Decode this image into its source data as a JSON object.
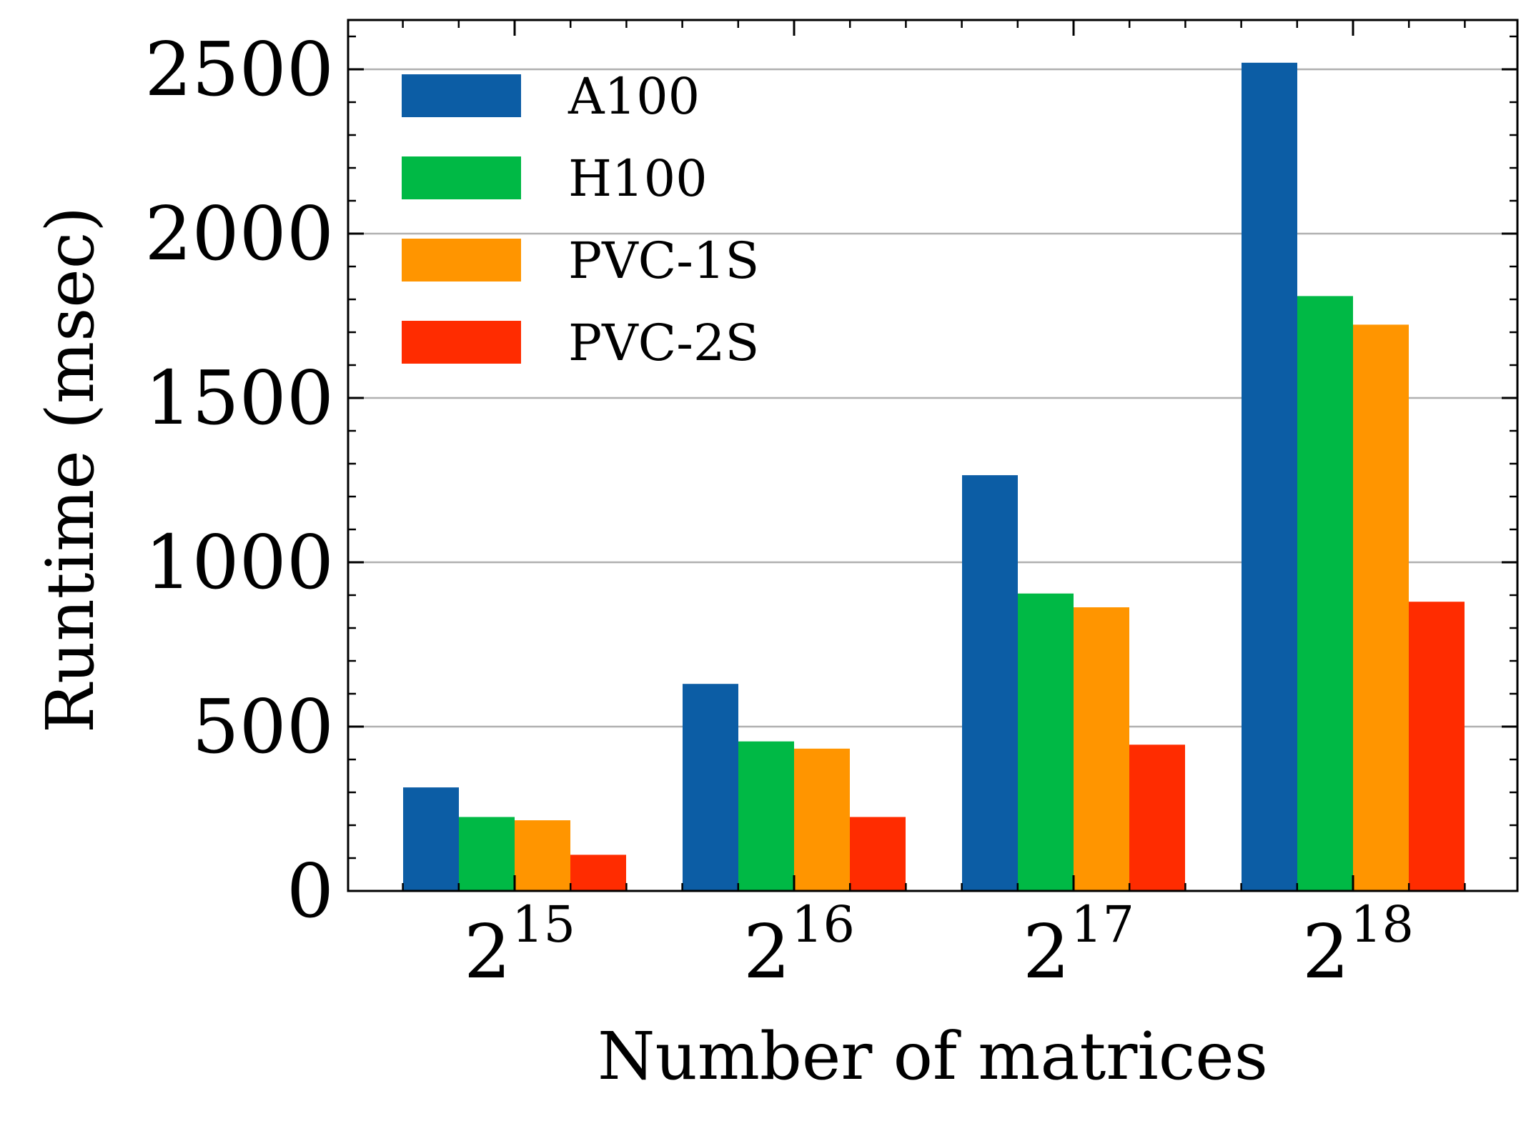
{
  "chart_data": {
    "type": "bar",
    "title": "",
    "xlabel": "Number of matrices",
    "ylabel": "Runtime (msec)",
    "categories": [
      {
        "base": "2",
        "exp": "15"
      },
      {
        "base": "2",
        "exp": "16"
      },
      {
        "base": "2",
        "exp": "17"
      },
      {
        "base": "2",
        "exp": "18"
      }
    ],
    "series": [
      {
        "name": "A100",
        "color": "#0C5DA5",
        "values": [
          315,
          630,
          1265,
          2520
        ]
      },
      {
        "name": "H100",
        "color": "#00B945",
        "values": [
          225,
          455,
          905,
          1810
        ]
      },
      {
        "name": "PVC-1S",
        "color": "#FF9500",
        "values": [
          215,
          433,
          863,
          1723
        ]
      },
      {
        "name": "PVC-2S",
        "color": "#FF2C00",
        "values": [
          110,
          225,
          445,
          880
        ]
      }
    ],
    "ylim": [
      0,
      2650
    ],
    "yticks": [
      0,
      500,
      1000,
      1500,
      2000,
      2500
    ],
    "yticks_minor_step": 100,
    "grid": "y-major",
    "legend": "top-left"
  }
}
